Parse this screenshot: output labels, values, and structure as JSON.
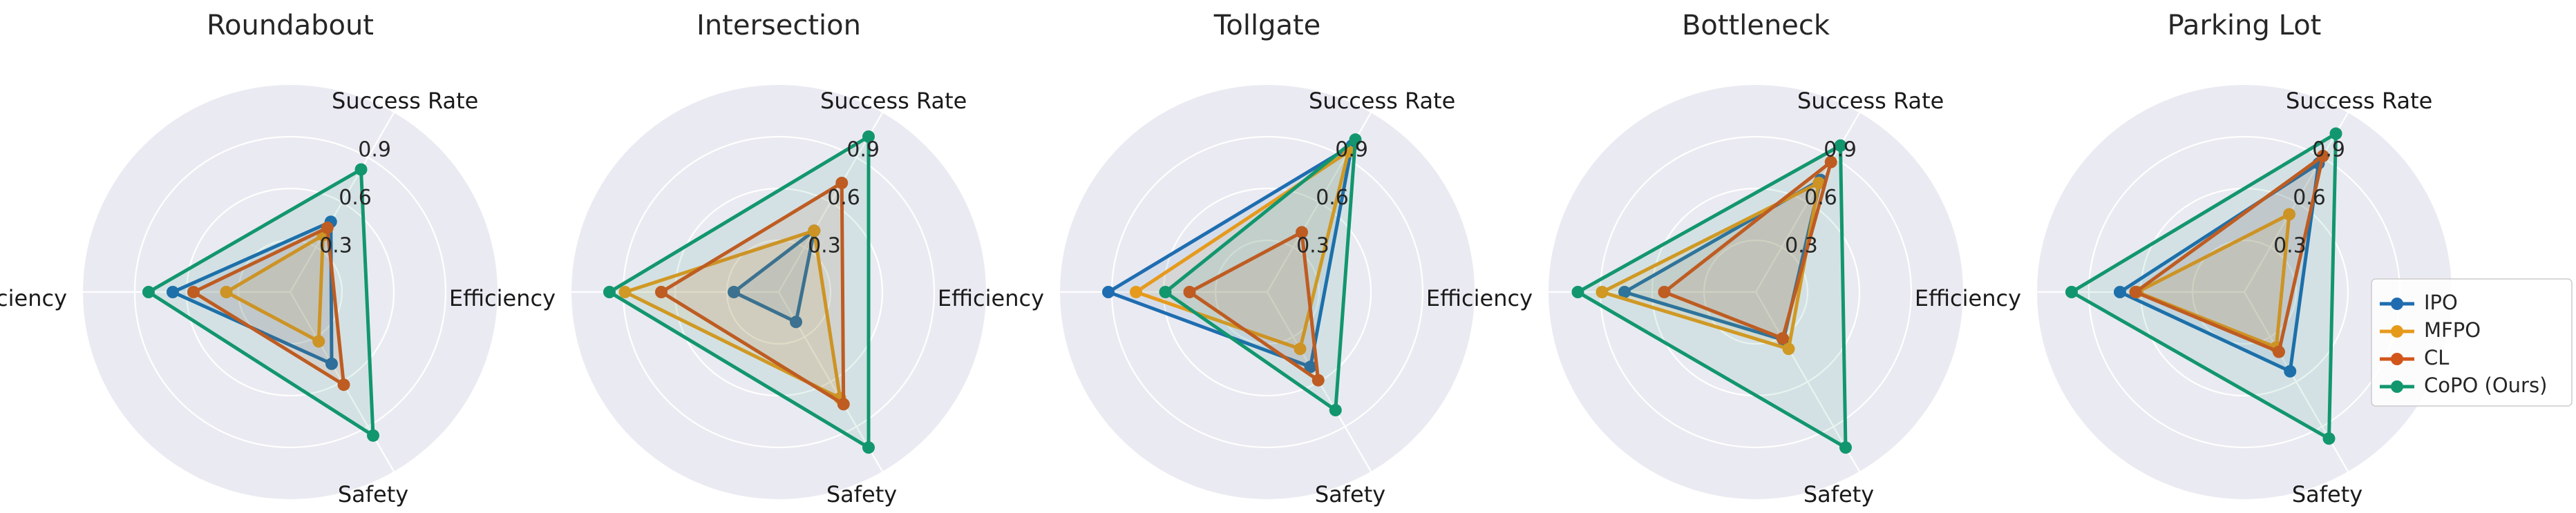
{
  "chart_data": [
    {
      "type": "radar",
      "title": "Roundabout",
      "axes": [
        "Success Rate",
        "Efficiency",
        "Safety"
      ],
      "ticks": [
        0.3,
        0.6,
        0.9
      ],
      "rlim": [
        0,
        1.2
      ],
      "series": [
        {
          "name": "IPO",
          "values": [
            0.47,
            0.68,
            0.48
          ]
        },
        {
          "name": "MFPO",
          "values": [
            0.38,
            0.37,
            0.33
          ]
        },
        {
          "name": "CL",
          "values": [
            0.43,
            0.56,
            0.62
          ]
        },
        {
          "name": "CoPO (Ours)",
          "values": [
            0.82,
            0.82,
            0.96
          ]
        }
      ]
    },
    {
      "type": "radar",
      "title": "Intersection",
      "axes": [
        "Success Rate",
        "Efficiency",
        "Safety"
      ],
      "ticks": [
        0.3,
        0.6,
        0.9
      ],
      "rlim": [
        0,
        1.2
      ],
      "series": [
        {
          "name": "IPO",
          "values": [
            0.41,
            0.26,
            0.2
          ]
        },
        {
          "name": "MFPO",
          "values": [
            0.41,
            0.89,
            0.71
          ]
        },
        {
          "name": "CL",
          "values": [
            0.73,
            0.68,
            0.75
          ]
        },
        {
          "name": "CoPO (Ours)",
          "values": [
            1.04,
            0.98,
            1.04
          ]
        }
      ]
    },
    {
      "type": "radar",
      "title": "Tollgate",
      "axes": [
        "Success Rate",
        "Efficiency",
        "Safety"
      ],
      "ticks": [
        0.3,
        0.6,
        0.9
      ],
      "rlim": [
        0,
        1.2
      ],
      "series": [
        {
          "name": "IPO",
          "values": [
            0.98,
            0.92,
            0.5
          ]
        },
        {
          "name": "MFPO",
          "values": [
            0.94,
            0.76,
            0.38
          ]
        },
        {
          "name": "CL",
          "values": [
            0.4,
            0.45,
            0.59
          ]
        },
        {
          "name": "CoPO (Ours)",
          "values": [
            1.02,
            0.59,
            0.79
          ]
        }
      ]
    },
    {
      "type": "radar",
      "title": "Bottleneck",
      "axes": [
        "Success Rate",
        "Efficiency",
        "Safety"
      ],
      "ticks": [
        0.3,
        0.6,
        0.9
      ],
      "rlim": [
        0,
        1.2
      ],
      "series": [
        {
          "name": "IPO",
          "values": [
            0.75,
            0.76,
            0.32
          ]
        },
        {
          "name": "MFPO",
          "values": [
            0.73,
            0.89,
            0.38
          ]
        },
        {
          "name": "CL",
          "values": [
            0.87,
            0.53,
            0.31
          ]
        },
        {
          "name": "CoPO (Ours)",
          "values": [
            0.98,
            1.03,
            1.04
          ]
        }
      ]
    },
    {
      "type": "radar",
      "title": "Parking Lot",
      "axes": [
        "Success Rate",
        "Efficiency",
        "Safety"
      ],
      "ticks": [
        0.3,
        0.6,
        0.9
      ],
      "rlim": [
        0,
        1.2
      ],
      "series": [
        {
          "name": "IPO",
          "values": [
            0.86,
            0.72,
            0.53
          ]
        },
        {
          "name": "MFPO",
          "values": [
            0.52,
            0.62,
            0.37
          ]
        },
        {
          "name": "CL",
          "values": [
            0.91,
            0.63,
            0.4
          ]
        },
        {
          "name": "CoPO (Ours)",
          "values": [
            1.06,
            1.0,
            0.98
          ]
        }
      ]
    }
  ],
  "legend": {
    "placement": "right",
    "entries": [
      "IPO",
      "MFPO",
      "CL",
      "CoPO (Ours)"
    ]
  },
  "colors": {
    "IPO": "#1F6DB0",
    "MFPO": "#E69A1C",
    "CL": "#D2561A",
    "CoPO (Ours)": "#12966E",
    "background": "#EAEAF2",
    "grid": "#FFFFFF"
  }
}
